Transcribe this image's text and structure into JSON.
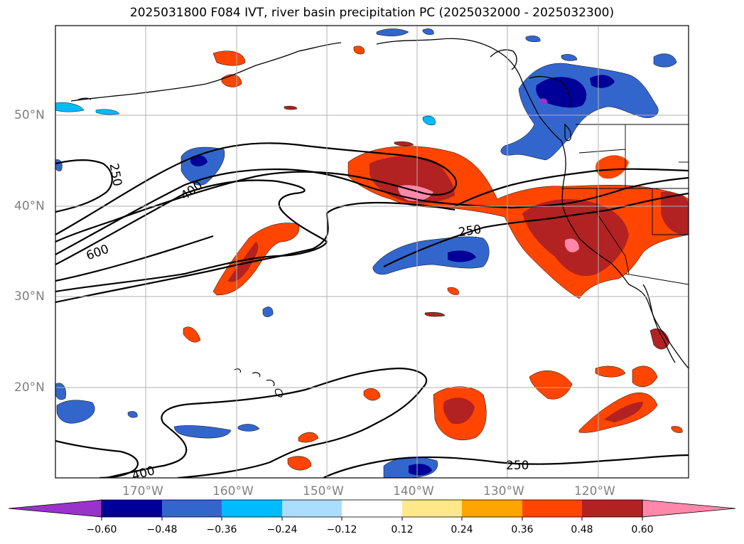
{
  "title": "2025031800 F084 IVT, river basin precipitation PC (2025032000 - 2025032300)",
  "lat_labels": [
    "50°N",
    "40°N",
    "30°N",
    "20°N"
  ],
  "lon_labels": [
    "170°W",
    "160°W",
    "150°W",
    "140°W",
    "130°W",
    "120°W"
  ],
  "contour_labels": [
    "250",
    "400",
    "600",
    "250",
    "250",
    "400"
  ],
  "colorbar": {
    "ticks": [
      "−0.60",
      "−0.48",
      "−0.36",
      "−0.24",
      "−0.12",
      "0.12",
      "0.24",
      "0.36",
      "0.48",
      "0.60"
    ],
    "colors": [
      "#9933cc",
      "#000099",
      "#3366cc",
      "#00bbff",
      "#aaddff",
      "#ffffff",
      "#ffe88a",
      "#ffa500",
      "#ff4500",
      "#b22222",
      "#ff88aa"
    ]
  },
  "colors": {
    "grid": "#b0b0b0",
    "tick_label": "#808080",
    "contour": "#000000"
  }
}
